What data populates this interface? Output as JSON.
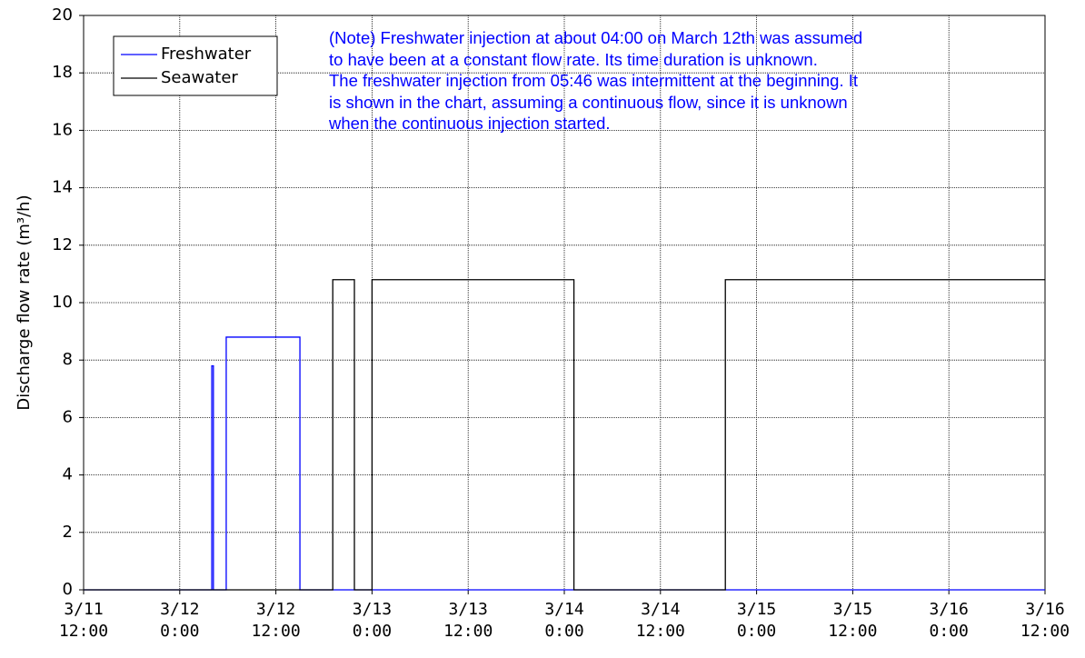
{
  "chart_data": {
    "type": "line",
    "y_label": "Discharge flow rate (m³/h)",
    "note": [
      "(Note) Freshwater injection at about 04:00 on March 12th was assumed",
      "to have been at a constant flow rate. Its time duration is unknown.",
      "The freshwater injection from 05:46 was intermittent at the beginning. It",
      "is shown in the chart, assuming a continuous flow, since it is unknown",
      "when the continuous injection started."
    ],
    "xlim": [
      0,
      120
    ],
    "xticks": [
      {
        "value": 0,
        "label": "3/11\n12:00"
      },
      {
        "value": 12,
        "label": "3/12\n0:00"
      },
      {
        "value": 24,
        "label": "3/12\n12:00"
      },
      {
        "value": 36,
        "label": "3/13\n0:00"
      },
      {
        "value": 48,
        "label": "3/13\n12:00"
      },
      {
        "value": 60,
        "label": "3/14\n0:00"
      },
      {
        "value": 72,
        "label": "3/14\n12:00"
      },
      {
        "value": 84,
        "label": "3/15\n0:00"
      },
      {
        "value": 96,
        "label": "3/15\n12:00"
      },
      {
        "value": 108,
        "label": "3/16\n0:00"
      },
      {
        "value": 120,
        "label": "3/16\n12:00"
      }
    ],
    "ylim": [
      0,
      20
    ],
    "yticks": [
      0,
      2,
      4,
      6,
      8,
      10,
      12,
      14,
      16,
      18,
      20
    ],
    "grid": true,
    "series": [
      {
        "name": "Freshwater",
        "color": "#0000ff",
        "x": [
          0,
          16,
          16,
          16.2,
          16.2,
          17.8,
          17.8,
          27,
          27,
          120
        ],
        "values": [
          0,
          0,
          7.8,
          7.8,
          0,
          0,
          8.8,
          8.8,
          0,
          0
        ]
      },
      {
        "name": "Seawater",
        "color": "#000000",
        "x": [
          0,
          31.1,
          31.1,
          33.8,
          33.8,
          36,
          36,
          61.2,
          61.2,
          80.1,
          80.1,
          120
        ],
        "values": [
          0,
          0,
          10.8,
          10.8,
          0,
          0,
          10.8,
          10.8,
          0,
          0,
          10.8,
          10.8
        ]
      }
    ]
  }
}
